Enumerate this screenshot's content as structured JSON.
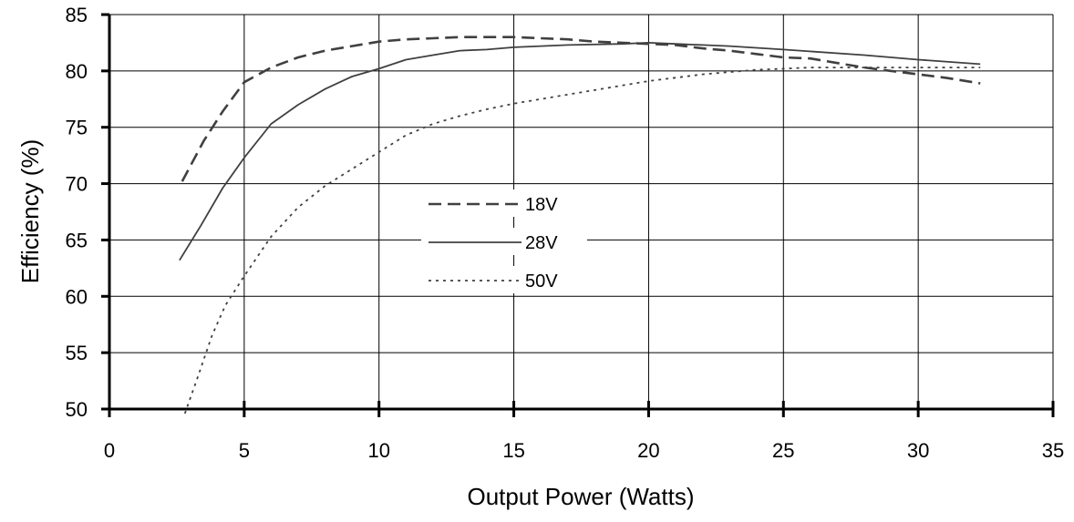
{
  "chart_data": {
    "type": "line",
    "xlabel": "Output Power (Watts)",
    "ylabel": "Efficiency (%)",
    "xlim": [
      0,
      35
    ],
    "ylim": [
      50,
      85
    ],
    "xticks": [
      0,
      5,
      10,
      15,
      20,
      25,
      30,
      35
    ],
    "yticks": [
      50,
      55,
      60,
      65,
      70,
      75,
      80,
      85
    ],
    "grid": true,
    "legend_position": "center",
    "series": [
      {
        "name": "18V",
        "style": "dashed",
        "color": "#404040",
        "x": [
          2.7,
          3.5,
          4.2,
          5.0,
          6.0,
          7.0,
          8.0,
          9.0,
          10.0,
          11.0,
          12.0,
          13.0,
          14.0,
          15.0,
          16.0,
          17.0,
          18.0,
          19.0,
          20.0,
          21.0,
          22.0,
          23.0,
          24.0,
          25.0,
          26.0,
          27.0,
          28.0,
          29.0,
          30.0,
          31.0,
          32.3
        ],
        "values": [
          70.2,
          73.8,
          76.4,
          79.0,
          80.3,
          81.2,
          81.8,
          82.2,
          82.6,
          82.8,
          82.9,
          83.0,
          83.0,
          83.0,
          82.9,
          82.8,
          82.6,
          82.5,
          82.4,
          82.3,
          82.0,
          81.8,
          81.5,
          81.2,
          81.1,
          80.7,
          80.3,
          80.0,
          79.7,
          79.4,
          78.9
        ]
      },
      {
        "name": "28V",
        "style": "solid",
        "color": "#404040",
        "x": [
          2.6,
          3.4,
          4.2,
          5.0,
          6.0,
          7.0,
          8.0,
          9.0,
          10.0,
          11.0,
          12.0,
          13.0,
          14.0,
          15.0,
          17.0,
          19.0,
          20.0,
          21.0,
          22.0,
          23.0,
          25.0,
          28.0,
          30.0,
          32.3
        ],
        "values": [
          63.2,
          66.3,
          69.6,
          72.3,
          75.3,
          77.0,
          78.4,
          79.5,
          80.2,
          81.0,
          81.4,
          81.8,
          81.9,
          82.1,
          82.3,
          82.4,
          82.5,
          82.4,
          82.3,
          82.2,
          81.9,
          81.4,
          81.0,
          80.6
        ]
      },
      {
        "name": "50V",
        "style": "dotted",
        "color": "#404040",
        "x": [
          2.8,
          3.3,
          3.8,
          4.3,
          5.0,
          6.0,
          7.0,
          8.0,
          9.0,
          10.0,
          11.0,
          12.0,
          13.0,
          14.0,
          15.0,
          16.0,
          17.0,
          18.0,
          19.0,
          20.0,
          21.0,
          22.0,
          23.0,
          24.0,
          25.0,
          26.0,
          27.0,
          28.0,
          29.0,
          30.0,
          31.0,
          32.3
        ],
        "values": [
          49.6,
          53.0,
          56.5,
          59.2,
          61.8,
          65.3,
          67.9,
          69.8,
          71.3,
          72.8,
          74.3,
          75.3,
          76.0,
          76.6,
          77.1,
          77.5,
          77.9,
          78.3,
          78.7,
          79.1,
          79.4,
          79.7,
          79.9,
          80.1,
          80.2,
          80.3,
          80.3,
          80.3,
          80.3,
          80.3,
          80.3,
          80.3
        ]
      }
    ]
  }
}
